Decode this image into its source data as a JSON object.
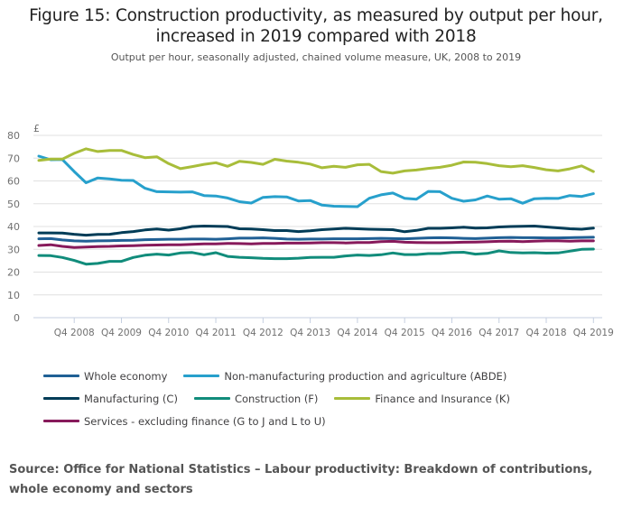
{
  "header": {
    "title_line1": "Figure 15: Construction productivity, as measured by output per hour,",
    "title_line2": "increased in 2019 compared with 2018",
    "subtitle": "Output per hour, seasonally adjusted, chained volume measure, UK, 2008 to 2019"
  },
  "source": "Source: Office for National Statistics – Labour productivity: Breakdown of contributions, whole economy and sectors",
  "chart_data": {
    "type": "line",
    "title": "Figure 15: Construction productivity, as measured by output per hour, increased in 2019 compared with 2018",
    "subtitle": "Output per hour, seasonally adjusted, chained volume measure, UK, 2008 to 2019",
    "xlabel": "",
    "ylabel": "£",
    "ylim": [
      0,
      80
    ],
    "yticks": [
      0,
      10,
      20,
      30,
      40,
      50,
      60,
      70,
      80
    ],
    "grid": true,
    "legend_position": "bottom",
    "x_start": "Q1 2008",
    "x_end": "Q4 2019",
    "x_frequency": "quarterly",
    "xtick_labels": [
      "Q4 2008",
      "Q4 2009",
      "Q4 2010",
      "Q4 2011",
      "Q4 2012",
      "Q4 2013",
      "Q4 2014",
      "Q4 2015",
      "Q4 2016",
      "Q4 2017",
      "Q4 2018",
      "Q4 2019"
    ],
    "xtick_indices": [
      3,
      7,
      11,
      15,
      19,
      23,
      27,
      31,
      35,
      39,
      43,
      47
    ],
    "series": [
      {
        "name": "Whole economy",
        "color": "#206095",
        "values": [
          34.6,
          34.7,
          34.1,
          33.7,
          33.6,
          33.7,
          33.8,
          33.9,
          34.0,
          34.2,
          34.3,
          34.4,
          34.4,
          34.5,
          34.5,
          34.4,
          34.6,
          34.9,
          34.9,
          35.0,
          34.8,
          34.5,
          34.4,
          34.5,
          34.5,
          34.6,
          34.6,
          34.6,
          34.7,
          34.8,
          34.7,
          34.6,
          34.8,
          35.0,
          35.1,
          35.0,
          34.8,
          34.7,
          34.9,
          35.1,
          35.2,
          35.1,
          35.1,
          35.0,
          35.0,
          35.1,
          35.2,
          35.3
        ]
      },
      {
        "name": "Non-manufacturing production and agriculture (ABDE)",
        "color": "#27a0cc",
        "values": [
          70.9,
          69.3,
          69.4,
          64.1,
          59.2,
          61.3,
          60.9,
          60.3,
          60.2,
          56.8,
          55.3,
          55.2,
          55.1,
          55.2,
          53.6,
          53.4,
          52.5,
          50.9,
          50.3,
          52.8,
          53.1,
          53.0,
          51.2,
          51.4,
          49.4,
          48.9,
          48.8,
          48.7,
          52.4,
          53.9,
          54.7,
          52.4,
          52.0,
          55.4,
          55.3,
          52.4,
          51.1,
          51.7,
          53.4,
          52.0,
          52.2,
          50.2,
          52.2,
          52.4,
          52.3,
          53.6,
          53.2,
          54.4
        ]
      },
      {
        "name": "Manufacturing (C)",
        "color": "#003c57",
        "values": [
          37.2,
          37.2,
          37.1,
          36.6,
          36.2,
          36.5,
          36.6,
          37.3,
          37.8,
          38.5,
          38.9,
          38.4,
          39.0,
          40.0,
          40.2,
          40.1,
          40.0,
          39.0,
          38.9,
          38.6,
          38.2,
          38.2,
          37.8,
          38.1,
          38.6,
          38.9,
          39.2,
          39.0,
          38.8,
          38.7,
          38.6,
          37.7,
          38.3,
          39.2,
          39.2,
          39.4,
          39.7,
          39.3,
          39.4,
          39.8,
          40.0,
          40.1,
          40.2,
          39.8,
          39.4,
          39.0,
          38.8,
          39.3
        ]
      },
      {
        "name": "Construction (F)",
        "color": "#118c7b",
        "values": [
          27.3,
          27.2,
          26.4,
          25.1,
          23.5,
          23.8,
          24.7,
          24.7,
          26.4,
          27.4,
          27.9,
          27.5,
          28.4,
          28.6,
          27.6,
          28.5,
          26.9,
          26.5,
          26.3,
          26.0,
          25.9,
          25.9,
          26.1,
          26.4,
          26.5,
          26.5,
          27.1,
          27.5,
          27.3,
          27.6,
          28.4,
          27.7,
          27.7,
          28.1,
          28.1,
          28.6,
          28.7,
          27.9,
          28.2,
          29.3,
          28.6,
          28.4,
          28.5,
          28.3,
          28.4,
          29.2,
          30.0,
          30.1
        ]
      },
      {
        "name": "Finance and Insurance (K)",
        "color": "#a8bd3a",
        "values": [
          69.0,
          69.6,
          69.6,
          72.1,
          74.1,
          72.9,
          73.4,
          73.4,
          71.6,
          70.2,
          70.6,
          67.6,
          65.4,
          66.3,
          67.3,
          68.0,
          66.4,
          68.6,
          68.1,
          67.3,
          69.5,
          68.7,
          68.2,
          67.4,
          65.8,
          66.4,
          66.0,
          67.1,
          67.3,
          64.1,
          63.4,
          64.4,
          64.8,
          65.5,
          66.0,
          66.9,
          68.3,
          68.2,
          67.6,
          66.7,
          66.2,
          66.7,
          65.9,
          64.9,
          64.4,
          65.3,
          66.6,
          64.1
        ]
      },
      {
        "name": "Services - excluding finance (G to J and L to U)",
        "color": "#871a5b",
        "values": [
          31.7,
          32.0,
          31.3,
          30.8,
          31.0,
          31.2,
          31.3,
          31.5,
          31.6,
          31.8,
          31.9,
          32.0,
          32.0,
          32.2,
          32.4,
          32.4,
          32.6,
          32.5,
          32.4,
          32.6,
          32.6,
          32.7,
          32.7,
          32.8,
          32.9,
          32.9,
          32.8,
          33.0,
          33.0,
          33.4,
          33.5,
          33.1,
          33.0,
          32.9,
          32.9,
          33.0,
          33.1,
          33.2,
          33.3,
          33.5,
          33.6,
          33.4,
          33.6,
          33.7,
          33.7,
          33.6,
          33.7,
          33.7
        ]
      }
    ]
  },
  "legend": {
    "rows": [
      [
        0,
        1
      ],
      [
        2,
        3,
        4
      ],
      [
        5
      ]
    ]
  }
}
